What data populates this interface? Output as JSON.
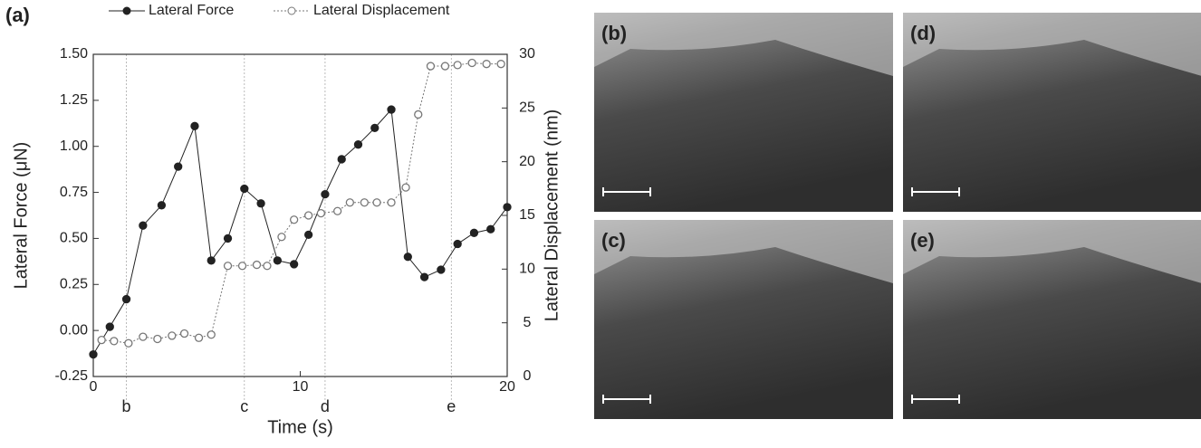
{
  "chart_data": {
    "type": "line",
    "panel_label": "(a)",
    "xlabel": "Time (s)",
    "ylabel": "Lateral Force (μN)",
    "y2label": "Lateral Displacement (nm)",
    "xlim": [
      0,
      20
    ],
    "xticks": [
      0,
      10,
      20
    ],
    "ylim": [
      -0.25,
      1.5
    ],
    "yticks": [
      {
        "value": -0.25,
        "label": "-0.25"
      },
      {
        "value": 0,
        "label": "0.00"
      },
      {
        "value": 0.25,
        "label": "0.25"
      },
      {
        "value": 0.5,
        "label": "0.50"
      },
      {
        "value": 0.75,
        "label": "0.75"
      },
      {
        "value": 1,
        "label": "1.00"
      },
      {
        "value": 1.25,
        "label": "1.25"
      },
      {
        "value": 1.5,
        "label": "1.50"
      }
    ],
    "y2lim": [
      0,
      30
    ],
    "y2ticks": [
      0,
      5,
      10,
      15,
      20,
      25,
      30
    ],
    "series": [
      {
        "name": "Lateral Force",
        "color": "#222222",
        "marker": "filled",
        "x": [
          0,
          0.8,
          1.6,
          2.4,
          3.3,
          4.1,
          4.9,
          5.7,
          6.5,
          7.3,
          8.1,
          8.9,
          9.7,
          10.4,
          11.2,
          12.0,
          12.8,
          13.6,
          14.4,
          15.2,
          16.0,
          16.8,
          17.6,
          18.4,
          19.2,
          20.0
        ],
        "values": [
          -0.13,
          0.02,
          0.17,
          0.57,
          0.68,
          0.89,
          1.11,
          0.38,
          0.5,
          0.77,
          0.69,
          0.38,
          0.36,
          0.52,
          0.74,
          0.93,
          1.01,
          1.1,
          1.2,
          0.4,
          0.29,
          0.33,
          0.47,
          0.53,
          0.55,
          0.67
        ]
      },
      {
        "name": "Lateral Displacement",
        "color": "#777777",
        "marker": "hollow",
        "axis": "y2",
        "x": [
          0.4,
          1.0,
          1.7,
          2.4,
          3.1,
          3.8,
          4.4,
          5.1,
          5.7,
          6.5,
          7.2,
          7.9,
          8.4,
          9.1,
          9.7,
          10.4,
          11.0,
          11.8,
          12.4,
          13.1,
          13.7,
          14.4,
          15.1,
          15.7,
          16.3,
          17.0,
          17.6,
          18.3,
          19.0,
          19.7
        ],
        "values": [
          3.4,
          3.3,
          3.1,
          3.7,
          3.5,
          3.8,
          4.0,
          3.6,
          3.9,
          10.3,
          10.3,
          10.4,
          10.3,
          13.0,
          14.6,
          15.0,
          15.2,
          15.4,
          16.2,
          16.2,
          16.2,
          16.2,
          17.6,
          24.4,
          28.9,
          28.9,
          29.0,
          29.2,
          29.1,
          29.1
        ]
      }
    ],
    "annotations": [
      {
        "x": 1.6,
        "label": "b"
      },
      {
        "x": 7.3,
        "label": "c"
      },
      {
        "x": 11.2,
        "label": "d"
      },
      {
        "x": 17.3,
        "label": "e"
      }
    ]
  },
  "panels": [
    {
      "label": "(b)"
    },
    {
      "label": "(d)"
    },
    {
      "label": "(c)"
    },
    {
      "label": "(e)"
    }
  ]
}
